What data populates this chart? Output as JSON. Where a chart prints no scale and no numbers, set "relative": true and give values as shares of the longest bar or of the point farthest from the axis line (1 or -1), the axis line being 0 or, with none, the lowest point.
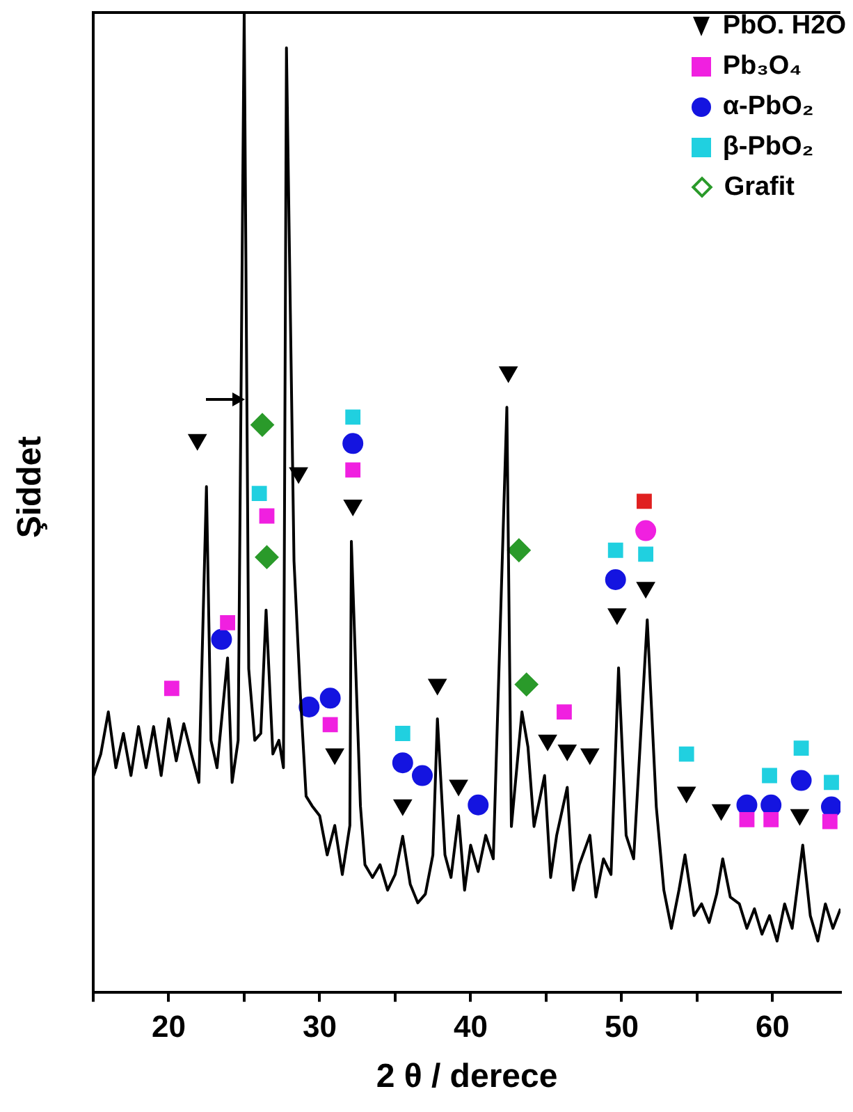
{
  "chart_data": {
    "type": "line",
    "relative": true,
    "xlabel": "2 θ / derece",
    "ylabel": "Şiddet",
    "xlim": [
      15,
      64.5
    ],
    "xticks": [
      {
        "value": 15,
        "label": null
      },
      20,
      {
        "value": 25,
        "label": null
      },
      30,
      {
        "value": 35,
        "label": null
      },
      40,
      {
        "value": 45,
        "label": null
      },
      50,
      {
        "value": 55,
        "label": null
      },
      60
    ],
    "tick_labels": "x",
    "legend": "top right",
    "series": [
      {
        "color": "#000000",
        "marker": "none",
        "x": [
          15,
          15.5,
          16,
          16.5,
          17,
          17.5,
          18,
          18.5,
          19,
          19.5,
          20,
          20.5,
          21,
          21.5,
          22,
          22.5,
          22.8,
          23.2,
          23.9,
          24.2,
          24.6,
          25,
          25.3,
          25.7,
          26.1,
          26.45,
          26.9,
          27.3,
          27.6,
          27.8,
          28.3,
          28.7,
          29.1,
          29.5,
          30,
          30.5,
          31,
          31.5,
          32,
          32.1,
          32.7,
          33,
          33.5,
          34,
          34.5,
          35,
          35.5,
          36,
          36.5,
          37,
          37.5,
          37.8,
          38.3,
          38.7,
          39.2,
          39.6,
          40,
          40.5,
          41,
          41.5,
          42.4,
          42.7,
          43.4,
          43.8,
          44.2,
          44.9,
          45.3,
          45.7,
          46.4,
          46.8,
          47.2,
          47.9,
          48.3,
          48.8,
          49.3,
          49.8,
          50.3,
          50.8,
          51.7,
          52.3,
          52.8,
          53.3,
          53.8,
          54.2,
          54.8,
          55.3,
          55.8,
          56.3,
          56.7,
          57.2,
          57.8,
          58.3,
          58.8,
          59.3,
          59.8,
          60.3,
          60.8,
          61.3,
          62,
          62.5,
          63,
          63.5,
          64,
          64.5
        ],
        "values": [
          0.22,
          0.243,
          0.286,
          0.229,
          0.264,
          0.221,
          0.271,
          0.229,
          0.271,
          0.221,
          0.279,
          0.236,
          0.274,
          0.243,
          0.214,
          0.516,
          0.257,
          0.229,
          0.341,
          0.214,
          0.257,
          1,
          0.33,
          0.257,
          0.264,
          0.39,
          0.243,
          0.257,
          0.229,
          0.964,
          0.44,
          0.31,
          0.2,
          0.19,
          0.18,
          0.14,
          0.17,
          0.12,
          0.17,
          0.46,
          0.19,
          0.13,
          0.117,
          0.13,
          0.104,
          0.12,
          0.159,
          0.11,
          0.091,
          0.1,
          0.14,
          0.279,
          0.14,
          0.117,
          0.18,
          0.104,
          0.15,
          0.123,
          0.16,
          0.136,
          0.597,
          0.169,
          0.286,
          0.25,
          0.169,
          0.221,
          0.117,
          0.16,
          0.209,
          0.104,
          0.13,
          0.16,
          0.097,
          0.136,
          0.12,
          0.331,
          0.16,
          0.136,
          0.38,
          0.189,
          0.104,
          0.065,
          0.104,
          0.14,
          0.078,
          0.09,
          0.071,
          0.1,
          0.136,
          0.097,
          0.09,
          0.065,
          0.085,
          0.059,
          0.078,
          0.052,
          0.09,
          0.065,
          0.15,
          0.078,
          0.052,
          0.09,
          0.065,
          0.085
        ]
      },
      {
        "type": "scatter",
        "name": "PbO. H2O",
        "color": "#000000",
        "marker": "triangle",
        "x": [
          21.9,
          28.6,
          32.2,
          31.0,
          35.5,
          37.8,
          39.2,
          42.5,
          45.1,
          46.4,
          47.9,
          49.7,
          51.6,
          54.3,
          56.6,
          61.8
        ],
        "values": [
          0.564,
          0.53,
          0.497,
          0.243,
          0.191,
          0.314,
          0.211,
          0.633,
          0.257,
          0.247,
          0.243,
          0.386,
          0.413,
          0.204,
          0.186,
          0.181
        ]
      },
      {
        "type": "scatter",
        "name": "Pb₃O₄",
        "color": "#f020e0",
        "marker": "square",
        "x": [
          20.2,
          23.9,
          26.5,
          30.7,
          32.2,
          46.2,
          58.3,
          59.9,
          63.8
        ],
        "values": [
          0.31,
          0.377,
          0.486,
          0.273,
          0.533,
          0.286,
          0.176,
          0.176,
          0.174
        ]
      },
      {
        "type": "scatter",
        "name": "α-PbO₂",
        "color": "#1414e0",
        "colors": [
          "#1414e0",
          "#1414e0",
          "#1414e0",
          "#1414e0",
          "#1414e0",
          "#1414e0",
          "#1414e0",
          "#1414e0",
          "#f020e0",
          "#1414e0",
          "#1414e0",
          "#1414e0",
          "#1414e0"
        ],
        "marker": "circle",
        "x": [
          23.5,
          29.3,
          30.7,
          32.2,
          35.5,
          36.8,
          40.5,
          49.6,
          51.6,
          58.3,
          59.9,
          61.9,
          63.9
        ],
        "values": [
          0.36,
          0.291,
          0.3,
          0.56,
          0.234,
          0.221,
          0.191,
          0.421,
          0.471,
          0.191,
          0.191,
          0.216,
          0.189
        ]
      },
      {
        "type": "scatter",
        "name": "β-PbO₂",
        "color": "#20d0e0",
        "colors": [
          "#20d0e0",
          "#20d0e0",
          "#20d0e0",
          "#20d0e0",
          "#e02020",
          "#20d0e0",
          "#20d0e0",
          "#20d0e0",
          "#20d0e0",
          "#20d0e0"
        ],
        "marker": "square",
        "x": [
          26.0,
          32.2,
          35.5,
          49.6,
          51.5,
          51.6,
          54.3,
          59.8,
          61.9,
          63.9
        ],
        "values": [
          0.509,
          0.587,
          0.264,
          0.451,
          0.501,
          0.447,
          0.243,
          0.221,
          0.249,
          0.214
        ]
      },
      {
        "type": "scatter",
        "name": "Grafit",
        "color": "#2a9a2a",
        "marker": "diamond",
        "x": [
          26.2,
          26.5,
          43.2,
          43.7
        ],
        "values": [
          0.579,
          0.444,
          0.451,
          0.314
        ]
      }
    ]
  }
}
